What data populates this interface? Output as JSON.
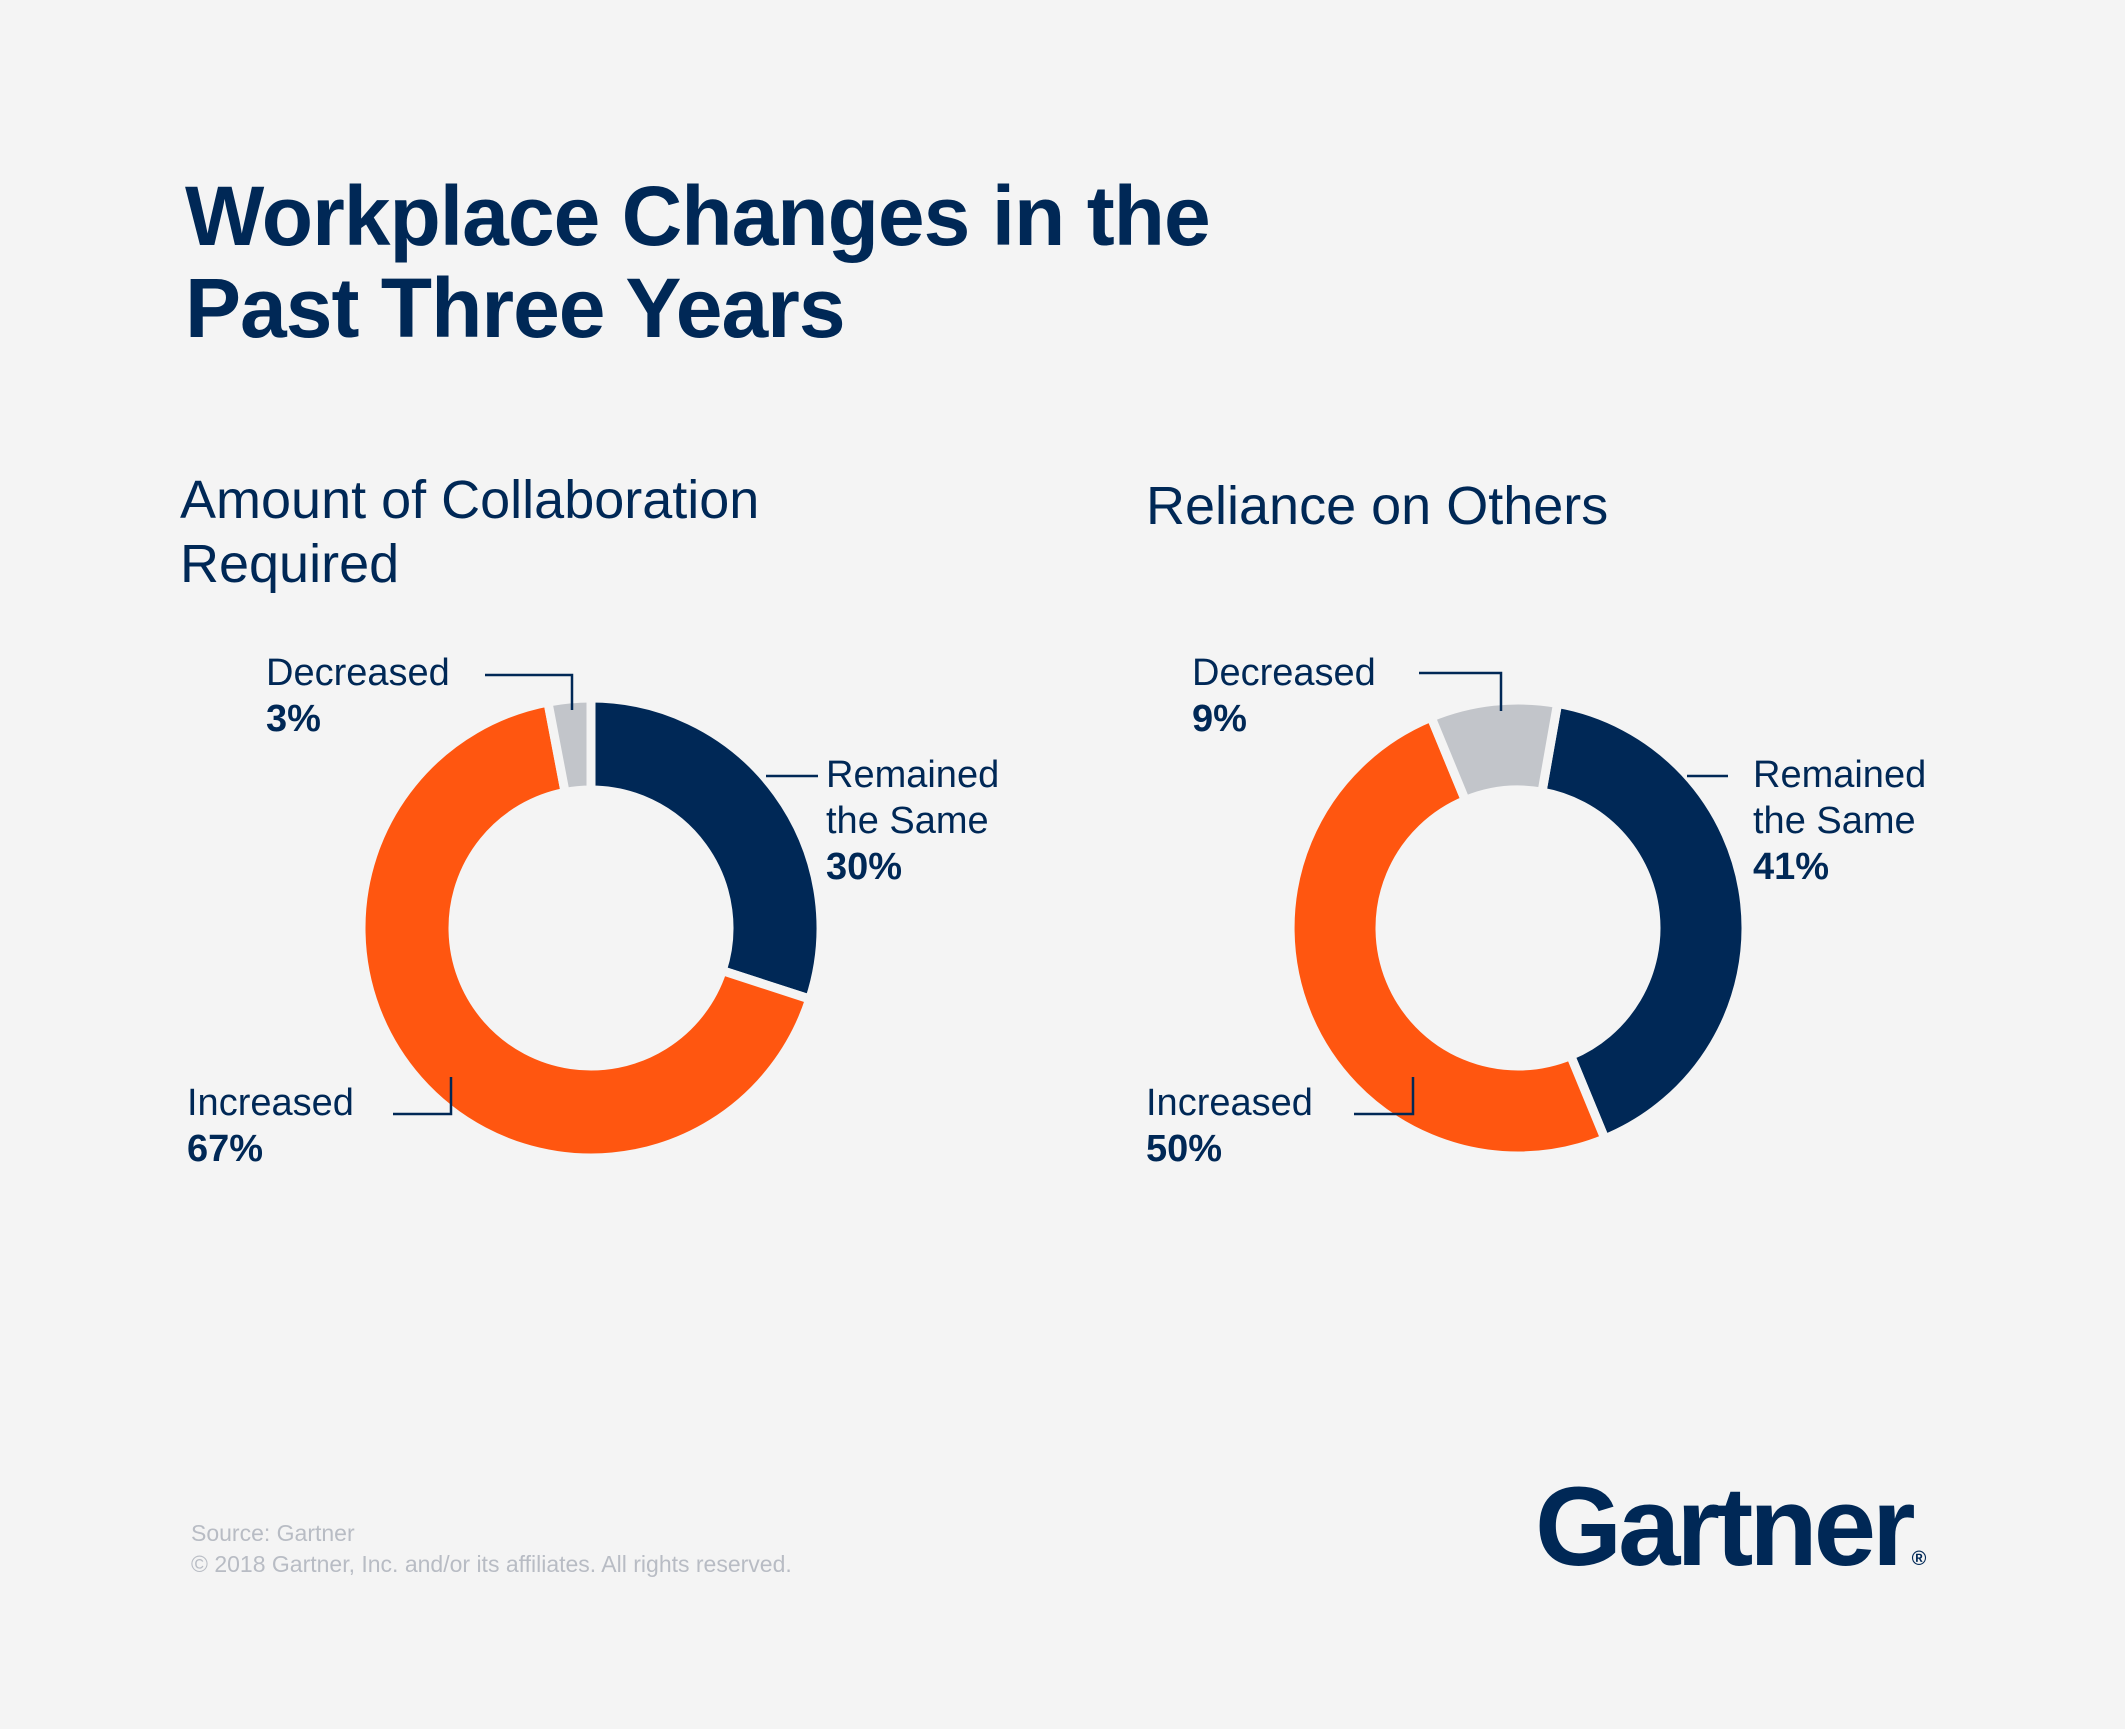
{
  "title_lines": [
    "Workplace Changes in the",
    "Past Three Years"
  ],
  "colors": {
    "increased": "#ff5610",
    "remained": "#002856",
    "decreased": "#c2c5ca",
    "text": "#002856",
    "background": "#f4f4f4"
  },
  "chart_data": [
    {
      "type": "pie",
      "variant": "donut",
      "title_lines": [
        "Amount of Collaboration",
        "Required"
      ],
      "slices": [
        {
          "label": "Remained the Same",
          "label_lines": [
            "Remained",
            "the Same"
          ],
          "value": 30,
          "value_label": "30%"
        },
        {
          "label": "Increased",
          "label_lines": [
            "Increased"
          ],
          "value": 67,
          "value_label": "67%"
        },
        {
          "label": "Decreased",
          "label_lines": [
            "Decreased"
          ],
          "value": 3,
          "value_label": "3%"
        }
      ]
    },
    {
      "type": "pie",
      "variant": "donut",
      "title_lines": [
        "Reliance on Others"
      ],
      "slices": [
        {
          "label": "Remained the Same",
          "label_lines": [
            "Remained",
            "the Same"
          ],
          "value": 41,
          "value_label": "41%"
        },
        {
          "label": "Increased",
          "label_lines": [
            "Increased"
          ],
          "value": 50,
          "value_label": "50%"
        },
        {
          "label": "Decreased",
          "label_lines": [
            "Decreased"
          ],
          "value": 9,
          "value_label": "9%"
        }
      ]
    }
  ],
  "footer": {
    "source": "Source: Gartner",
    "copyright": "© 2018 Gartner, Inc. and/or its affiliates. All rights reserved."
  },
  "logo": {
    "text": "Gartner",
    "mark": "®"
  }
}
